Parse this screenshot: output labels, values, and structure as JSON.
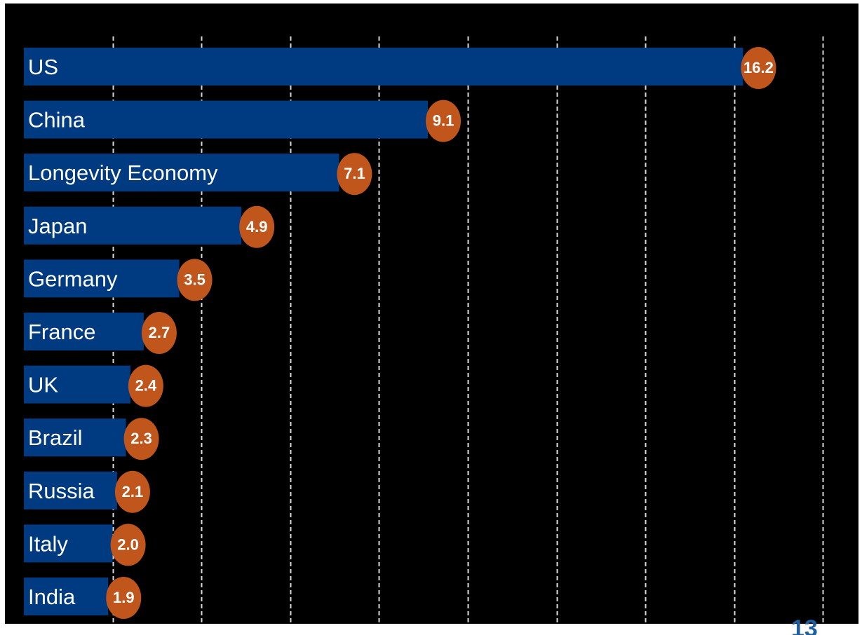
{
  "colors": {
    "background": "#000000",
    "bar": "#003a80",
    "bubble": "#c0561c",
    "gridline": "#d9d9d9",
    "label_text": "#ffffff",
    "page_number": "#1f5f9f"
  },
  "page_number": "13",
  "chart_data": {
    "type": "bar",
    "orientation": "horizontal",
    "categories": [
      "US",
      "China",
      "Longevity  Economy",
      "Japan",
      "Germany",
      "France",
      "UK",
      "Brazil",
      "Russia",
      "Italy",
      "India"
    ],
    "values": [
      16.2,
      9.1,
      7.1,
      4.9,
      3.5,
      2.7,
      2.4,
      2.3,
      2.1,
      2.0,
      1.9
    ],
    "value_labels": [
      "16.2",
      "9.1",
      "7.1",
      "4.9",
      "3.5",
      "2.7",
      "2.4",
      "2.3",
      "2.1",
      "2.0",
      "1.9"
    ],
    "title": "",
    "xlabel": "",
    "ylabel": "",
    "xlim": [
      0,
      18
    ],
    "grid": true,
    "gridline_interval": 2,
    "gridline_style": "dashed",
    "legend": "none"
  }
}
